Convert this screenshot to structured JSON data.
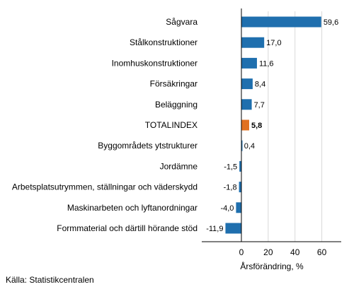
{
  "chart_data": {
    "type": "bar",
    "orientation": "horizontal",
    "categories": [
      "Sågvara",
      "Stålkonstruktioner",
      "Inomhuskonstruktioner",
      "Försäkringar",
      "Beläggning",
      "TOTALINDEX",
      "Byggområdets ytstrukturer",
      "Jordämne",
      "Arbetsplatsutrymmen, ställningar och väderskydd",
      "Maskinarbeten och lyftanordningar",
      "Formmaterial och därtill hörande stöd"
    ],
    "values": [
      59.6,
      17.0,
      11.6,
      8.4,
      7.7,
      5.8,
      0.4,
      -1.5,
      -1.8,
      -4.0,
      -11.9
    ],
    "value_labels": [
      "59,6",
      "17,0",
      "11,6",
      "8,4",
      "7,7",
      "5,8",
      "0,4",
      "-1,5",
      "-1,8",
      "-4,0",
      "-11,9"
    ],
    "highlight_category": "TOTALINDEX",
    "xlabel": "Årsförändring, %",
    "ylabel": "",
    "xlim": [
      -30,
      75
    ],
    "xticks": [
      0,
      20,
      40,
      60
    ],
    "xtick_labels": [
      "0",
      "20",
      "40",
      "60"
    ],
    "grid": true,
    "colors": {
      "bar": "#1f6fae",
      "highlight": "#e07020",
      "grid": "#d9d9d9",
      "axis": "#000000"
    }
  },
  "source": "Källa: Statistikcentralen"
}
